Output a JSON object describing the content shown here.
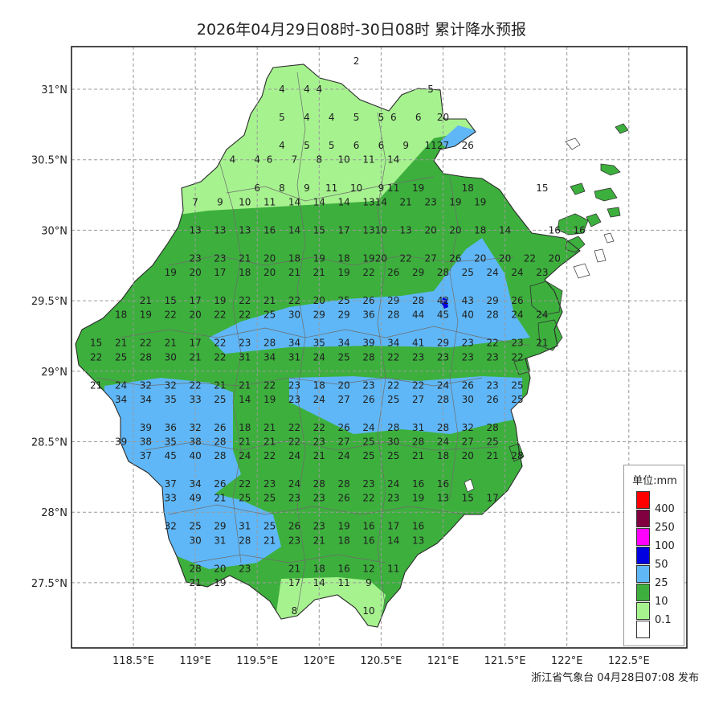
{
  "title": "2026年04月29日08时-30日08时 累计降水预报",
  "footer": "浙江省气象台 04月28日07:08 发布",
  "x_ticks": [
    "118.5°E",
    "119°E",
    "119.5°E",
    "120°E",
    "120.5°E",
    "121°E",
    "121.5°E",
    "122°E",
    "122.5°E"
  ],
  "y_ticks": [
    "31°N",
    "30.5°N",
    "30°N",
    "29.5°N",
    "29°N",
    "28.5°N",
    "28°N",
    "27.5°N"
  ],
  "legend": {
    "title": "单位:mm",
    "items": [
      {
        "label": "400",
        "color": "#ff0000"
      },
      {
        "label": "250",
        "color": "#800040"
      },
      {
        "label": "100",
        "color": "#ff00ff"
      },
      {
        "label": "50",
        "color": "#0000e0"
      },
      {
        "label": "25",
        "color": "#5fb7f7"
      },
      {
        "label": "10",
        "color": "#3daf3d"
      },
      {
        "label": "0.1",
        "color": "#a6f28f"
      },
      {
        "label": "",
        "color": "#ffffff"
      }
    ]
  },
  "colors": {
    "light": "#a6f28f",
    "mid": "#3daf3d",
    "blue": "#5fb7f7",
    "deep": "#0000e0"
  },
  "stations": [
    [
      120.3,
      31.2,
      "2"
    ],
    [
      119.7,
      31.0,
      "4"
    ],
    [
      119.9,
      31.0,
      "4"
    ],
    [
      120.0,
      31.0,
      "4"
    ],
    [
      120.9,
      31.0,
      "5"
    ],
    [
      119.7,
      30.8,
      "5"
    ],
    [
      119.9,
      30.8,
      "4"
    ],
    [
      120.1,
      30.8,
      "4"
    ],
    [
      120.3,
      30.8,
      "5"
    ],
    [
      120.5,
      30.8,
      "5"
    ],
    [
      120.6,
      30.8,
      "6"
    ],
    [
      120.8,
      30.8,
      "6"
    ],
    [
      121.0,
      30.8,
      "20"
    ],
    [
      119.7,
      30.6,
      "4"
    ],
    [
      119.9,
      30.6,
      "5"
    ],
    [
      120.1,
      30.6,
      "5"
    ],
    [
      120.3,
      30.6,
      "6"
    ],
    [
      120.5,
      30.6,
      "6"
    ],
    [
      120.7,
      30.6,
      "9"
    ],
    [
      120.9,
      30.6,
      "11"
    ],
    [
      121.0,
      30.6,
      "27"
    ],
    [
      121.2,
      30.6,
      "26"
    ],
    [
      119.3,
      30.5,
      "4"
    ],
    [
      119.5,
      30.5,
      "4"
    ],
    [
      119.6,
      30.5,
      "6"
    ],
    [
      119.8,
      30.5,
      "7"
    ],
    [
      120.0,
      30.5,
      "8"
    ],
    [
      120.2,
      30.5,
      "10"
    ],
    [
      120.4,
      30.5,
      "11"
    ],
    [
      120.6,
      30.5,
      "14"
    ],
    [
      119.5,
      30.3,
      "6"
    ],
    [
      119.7,
      30.3,
      "8"
    ],
    [
      119.9,
      30.3,
      "9"
    ],
    [
      120.1,
      30.3,
      "11"
    ],
    [
      120.3,
      30.3,
      "10"
    ],
    [
      120.5,
      30.3,
      "9"
    ],
    [
      120.6,
      30.3,
      "11"
    ],
    [
      120.8,
      30.3,
      "19"
    ],
    [
      121.2,
      30.3,
      "18"
    ],
    [
      121.8,
      30.3,
      "15"
    ],
    [
      119.0,
      30.2,
      "7"
    ],
    [
      119.2,
      30.2,
      "9"
    ],
    [
      119.4,
      30.2,
      "10"
    ],
    [
      119.6,
      30.2,
      "11"
    ],
    [
      119.8,
      30.2,
      "14"
    ],
    [
      120.0,
      30.2,
      "14"
    ],
    [
      120.2,
      30.2,
      "14"
    ],
    [
      120.4,
      30.2,
      "13"
    ],
    [
      120.5,
      30.2,
      "14"
    ],
    [
      120.7,
      30.2,
      "21"
    ],
    [
      120.9,
      30.2,
      "23"
    ],
    [
      121.1,
      30.2,
      "19"
    ],
    [
      121.3,
      30.2,
      "19"
    ],
    [
      119.0,
      30.0,
      "13"
    ],
    [
      119.2,
      30.0,
      "13"
    ],
    [
      119.4,
      30.0,
      "13"
    ],
    [
      119.6,
      30.0,
      "16"
    ],
    [
      119.8,
      30.0,
      "14"
    ],
    [
      120.0,
      30.0,
      "15"
    ],
    [
      120.2,
      30.0,
      "17"
    ],
    [
      120.4,
      30.0,
      "13"
    ],
    [
      120.5,
      30.0,
      "10"
    ],
    [
      120.7,
      30.0,
      "13"
    ],
    [
      120.9,
      30.0,
      "20"
    ],
    [
      121.1,
      30.0,
      "20"
    ],
    [
      121.3,
      30.0,
      "18"
    ],
    [
      121.5,
      30.0,
      "14"
    ],
    [
      121.9,
      30.0,
      "16"
    ],
    [
      122.1,
      30.0,
      "16"
    ],
    [
      119.0,
      29.8,
      "23"
    ],
    [
      119.2,
      29.8,
      "23"
    ],
    [
      119.4,
      29.8,
      "21"
    ],
    [
      119.6,
      29.8,
      "20"
    ],
    [
      119.8,
      29.8,
      "18"
    ],
    [
      120.0,
      29.8,
      "19"
    ],
    [
      120.2,
      29.8,
      "18"
    ],
    [
      120.4,
      29.8,
      "19"
    ],
    [
      120.5,
      29.8,
      "20"
    ],
    [
      120.7,
      29.8,
      "22"
    ],
    [
      120.9,
      29.8,
      "27"
    ],
    [
      121.1,
      29.8,
      "26"
    ],
    [
      121.3,
      29.8,
      "20"
    ],
    [
      121.5,
      29.8,
      "20"
    ],
    [
      121.7,
      29.8,
      "22"
    ],
    [
      121.9,
      29.8,
      "20"
    ],
    [
      118.8,
      29.7,
      "19"
    ],
    [
      119.0,
      29.7,
      "20"
    ],
    [
      119.2,
      29.7,
      "17"
    ],
    [
      119.4,
      29.7,
      "18"
    ],
    [
      119.6,
      29.7,
      "20"
    ],
    [
      119.8,
      29.7,
      "21"
    ],
    [
      120.0,
      29.7,
      "21"
    ],
    [
      120.2,
      29.7,
      "19"
    ],
    [
      120.4,
      29.7,
      "22"
    ],
    [
      120.6,
      29.7,
      "26"
    ],
    [
      120.8,
      29.7,
      "29"
    ],
    [
      121.0,
      29.7,
      "28"
    ],
    [
      121.2,
      29.7,
      "25"
    ],
    [
      121.4,
      29.7,
      "24"
    ],
    [
      121.6,
      29.7,
      "24"
    ],
    [
      121.8,
      29.7,
      "23"
    ],
    [
      118.6,
      29.5,
      "21"
    ],
    [
      118.8,
      29.5,
      "15"
    ],
    [
      119.0,
      29.5,
      "17"
    ],
    [
      119.2,
      29.5,
      "19"
    ],
    [
      119.4,
      29.5,
      "22"
    ],
    [
      119.6,
      29.5,
      "21"
    ],
    [
      119.8,
      29.5,
      "22"
    ],
    [
      120.0,
      29.5,
      "20"
    ],
    [
      120.2,
      29.5,
      "25"
    ],
    [
      120.4,
      29.5,
      "26"
    ],
    [
      120.6,
      29.5,
      "29"
    ],
    [
      120.8,
      29.5,
      "28"
    ],
    [
      121.0,
      29.5,
      "42"
    ],
    [
      121.2,
      29.5,
      "43"
    ],
    [
      121.4,
      29.5,
      "29"
    ],
    [
      121.6,
      29.5,
      "26"
    ],
    [
      118.4,
      29.4,
      "18"
    ],
    [
      118.6,
      29.4,
      "19"
    ],
    [
      118.8,
      29.4,
      "22"
    ],
    [
      119.0,
      29.4,
      "20"
    ],
    [
      119.2,
      29.4,
      "22"
    ],
    [
      119.4,
      29.4,
      "22"
    ],
    [
      119.6,
      29.4,
      "25"
    ],
    [
      119.8,
      29.4,
      "30"
    ],
    [
      120.0,
      29.4,
      "29"
    ],
    [
      120.2,
      29.4,
      "29"
    ],
    [
      120.4,
      29.4,
      "36"
    ],
    [
      120.6,
      29.4,
      "28"
    ],
    [
      120.8,
      29.4,
      "44"
    ],
    [
      121.0,
      29.4,
      "45"
    ],
    [
      121.2,
      29.4,
      "40"
    ],
    [
      121.4,
      29.4,
      "28"
    ],
    [
      121.6,
      29.4,
      "24"
    ],
    [
      121.8,
      29.4,
      "24"
    ],
    [
      118.2,
      29.2,
      "15"
    ],
    [
      118.4,
      29.2,
      "21"
    ],
    [
      118.6,
      29.2,
      "22"
    ],
    [
      118.8,
      29.2,
      "21"
    ],
    [
      119.0,
      29.2,
      "17"
    ],
    [
      119.2,
      29.2,
      "22"
    ],
    [
      119.4,
      29.2,
      "23"
    ],
    [
      119.6,
      29.2,
      "28"
    ],
    [
      119.8,
      29.2,
      "34"
    ],
    [
      120.0,
      29.2,
      "35"
    ],
    [
      120.2,
      29.2,
      "34"
    ],
    [
      120.4,
      29.2,
      "39"
    ],
    [
      120.6,
      29.2,
      "34"
    ],
    [
      120.8,
      29.2,
      "41"
    ],
    [
      121.0,
      29.2,
      "29"
    ],
    [
      121.2,
      29.2,
      "23"
    ],
    [
      121.4,
      29.2,
      "22"
    ],
    [
      121.6,
      29.2,
      "23"
    ],
    [
      121.8,
      29.2,
      "21"
    ],
    [
      118.2,
      29.1,
      "22"
    ],
    [
      118.4,
      29.1,
      "25"
    ],
    [
      118.6,
      29.1,
      "28"
    ],
    [
      118.8,
      29.1,
      "30"
    ],
    [
      119.0,
      29.1,
      "21"
    ],
    [
      119.2,
      29.1,
      "22"
    ],
    [
      119.4,
      29.1,
      "31"
    ],
    [
      119.6,
      29.1,
      "34"
    ],
    [
      119.8,
      29.1,
      "31"
    ],
    [
      120.0,
      29.1,
      "24"
    ],
    [
      120.2,
      29.1,
      "25"
    ],
    [
      120.4,
      29.1,
      "28"
    ],
    [
      120.6,
      29.1,
      "22"
    ],
    [
      120.8,
      29.1,
      "23"
    ],
    [
      121.0,
      29.1,
      "23"
    ],
    [
      121.2,
      29.1,
      "23"
    ],
    [
      121.4,
      29.1,
      "23"
    ],
    [
      121.6,
      29.1,
      "22"
    ],
    [
      118.2,
      28.9,
      "21"
    ],
    [
      118.4,
      28.9,
      "24"
    ],
    [
      118.6,
      28.9,
      "32"
    ],
    [
      118.8,
      28.9,
      "32"
    ],
    [
      119.0,
      28.9,
      "22"
    ],
    [
      119.2,
      28.9,
      "21"
    ],
    [
      119.4,
      28.9,
      "21"
    ],
    [
      119.6,
      28.9,
      "22"
    ],
    [
      119.8,
      28.9,
      "23"
    ],
    [
      120.0,
      28.9,
      "18"
    ],
    [
      120.2,
      28.9,
      "20"
    ],
    [
      120.4,
      28.9,
      "23"
    ],
    [
      120.6,
      28.9,
      "22"
    ],
    [
      120.8,
      28.9,
      "22"
    ],
    [
      121.0,
      28.9,
      "24"
    ],
    [
      121.2,
      28.9,
      "26"
    ],
    [
      121.4,
      28.9,
      "23"
    ],
    [
      121.6,
      28.9,
      "25"
    ],
    [
      118.4,
      28.8,
      "34"
    ],
    [
      118.6,
      28.8,
      "34"
    ],
    [
      118.8,
      28.8,
      "35"
    ],
    [
      119.0,
      28.8,
      "33"
    ],
    [
      119.2,
      28.8,
      "25"
    ],
    [
      119.4,
      28.8,
      "14"
    ],
    [
      119.6,
      28.8,
      "19"
    ],
    [
      119.8,
      28.8,
      "23"
    ],
    [
      120.0,
      28.8,
      "24"
    ],
    [
      120.2,
      28.8,
      "27"
    ],
    [
      120.4,
      28.8,
      "26"
    ],
    [
      120.6,
      28.8,
      "25"
    ],
    [
      120.8,
      28.8,
      "27"
    ],
    [
      121.0,
      28.8,
      "28"
    ],
    [
      121.2,
      28.8,
      "30"
    ],
    [
      121.4,
      28.8,
      "26"
    ],
    [
      121.6,
      28.8,
      "25"
    ],
    [
      118.6,
      28.6,
      "39"
    ],
    [
      118.8,
      28.6,
      "36"
    ],
    [
      119.0,
      28.6,
      "32"
    ],
    [
      119.2,
      28.6,
      "26"
    ],
    [
      119.4,
      28.6,
      "18"
    ],
    [
      119.6,
      28.6,
      "21"
    ],
    [
      119.8,
      28.6,
      "22"
    ],
    [
      120.0,
      28.6,
      "22"
    ],
    [
      120.2,
      28.6,
      "26"
    ],
    [
      120.4,
      28.6,
      "24"
    ],
    [
      120.6,
      28.6,
      "28"
    ],
    [
      120.8,
      28.6,
      "31"
    ],
    [
      121.0,
      28.6,
      "28"
    ],
    [
      121.2,
      28.6,
      "32"
    ],
    [
      121.4,
      28.6,
      "28"
    ],
    [
      118.4,
      28.5,
      "39"
    ],
    [
      118.6,
      28.5,
      "38"
    ],
    [
      118.8,
      28.5,
      "35"
    ],
    [
      119.0,
      28.5,
      "38"
    ],
    [
      119.2,
      28.5,
      "28"
    ],
    [
      119.4,
      28.5,
      "21"
    ],
    [
      119.6,
      28.5,
      "21"
    ],
    [
      119.8,
      28.5,
      "22"
    ],
    [
      120.0,
      28.5,
      "23"
    ],
    [
      120.2,
      28.5,
      "27"
    ],
    [
      120.4,
      28.5,
      "25"
    ],
    [
      120.6,
      28.5,
      "30"
    ],
    [
      120.8,
      28.5,
      "28"
    ],
    [
      121.0,
      28.5,
      "24"
    ],
    [
      121.2,
      28.5,
      "27"
    ],
    [
      121.4,
      28.5,
      "25"
    ],
    [
      118.6,
      28.4,
      "37"
    ],
    [
      118.8,
      28.4,
      "45"
    ],
    [
      119.0,
      28.4,
      "40"
    ],
    [
      119.2,
      28.4,
      "28"
    ],
    [
      119.4,
      28.4,
      "24"
    ],
    [
      119.6,
      28.4,
      "22"
    ],
    [
      119.8,
      28.4,
      "24"
    ],
    [
      120.0,
      28.4,
      "21"
    ],
    [
      120.2,
      28.4,
      "24"
    ],
    [
      120.4,
      28.4,
      "25"
    ],
    [
      120.6,
      28.4,
      "25"
    ],
    [
      120.8,
      28.4,
      "21"
    ],
    [
      121.0,
      28.4,
      "18"
    ],
    [
      121.2,
      28.4,
      "20"
    ],
    [
      121.4,
      28.4,
      "21"
    ],
    [
      121.6,
      28.4,
      "28"
    ],
    [
      118.8,
      28.2,
      "37"
    ],
    [
      119.0,
      28.2,
      "34"
    ],
    [
      119.2,
      28.2,
      "26"
    ],
    [
      119.4,
      28.2,
      "22"
    ],
    [
      119.6,
      28.2,
      "23"
    ],
    [
      119.8,
      28.2,
      "24"
    ],
    [
      120.0,
      28.2,
      "28"
    ],
    [
      120.2,
      28.2,
      "28"
    ],
    [
      120.4,
      28.2,
      "23"
    ],
    [
      120.6,
      28.2,
      "24"
    ],
    [
      120.8,
      28.2,
      "16"
    ],
    [
      121.0,
      28.2,
      "16"
    ],
    [
      118.8,
      28.1,
      "33"
    ],
    [
      119.0,
      28.1,
      "49"
    ],
    [
      119.2,
      28.1,
      "21"
    ],
    [
      119.4,
      28.1,
      "25"
    ],
    [
      119.6,
      28.1,
      "25"
    ],
    [
      119.8,
      28.1,
      "23"
    ],
    [
      120.0,
      28.1,
      "23"
    ],
    [
      120.2,
      28.1,
      "26"
    ],
    [
      120.4,
      28.1,
      "22"
    ],
    [
      120.6,
      28.1,
      "23"
    ],
    [
      120.8,
      28.1,
      "19"
    ],
    [
      121.0,
      28.1,
      "13"
    ],
    [
      121.2,
      28.1,
      "15"
    ],
    [
      121.4,
      28.1,
      "17"
    ],
    [
      118.8,
      27.9,
      "32"
    ],
    [
      119.0,
      27.9,
      "25"
    ],
    [
      119.2,
      27.9,
      "29"
    ],
    [
      119.4,
      27.9,
      "31"
    ],
    [
      119.6,
      27.9,
      "25"
    ],
    [
      119.8,
      27.9,
      "26"
    ],
    [
      120.0,
      27.9,
      "23"
    ],
    [
      120.2,
      27.9,
      "19"
    ],
    [
      120.4,
      27.9,
      "16"
    ],
    [
      120.6,
      27.9,
      "17"
    ],
    [
      120.8,
      27.9,
      "16"
    ],
    [
      119.0,
      27.8,
      "30"
    ],
    [
      119.2,
      27.8,
      "31"
    ],
    [
      119.4,
      27.8,
      "28"
    ],
    [
      119.6,
      27.8,
      "21"
    ],
    [
      119.8,
      27.8,
      "23"
    ],
    [
      120.0,
      27.8,
      "21"
    ],
    [
      120.2,
      27.8,
      "18"
    ],
    [
      120.4,
      27.8,
      "16"
    ],
    [
      120.6,
      27.8,
      "14"
    ],
    [
      120.8,
      27.8,
      "13"
    ],
    [
      119.0,
      27.6,
      "28"
    ],
    [
      119.2,
      27.6,
      "20"
    ],
    [
      119.4,
      27.6,
      "23"
    ],
    [
      119.8,
      27.6,
      "21"
    ],
    [
      120.0,
      27.6,
      "18"
    ],
    [
      120.2,
      27.6,
      "16"
    ],
    [
      120.4,
      27.6,
      "12"
    ],
    [
      120.6,
      27.6,
      "11"
    ],
    [
      119.0,
      27.5,
      "21"
    ],
    [
      119.2,
      27.5,
      "19"
    ],
    [
      119.8,
      27.5,
      "17"
    ],
    [
      120.0,
      27.5,
      "14"
    ],
    [
      120.2,
      27.5,
      "11"
    ],
    [
      120.4,
      27.5,
      "9"
    ],
    [
      119.8,
      27.3,
      "8"
    ],
    [
      120.4,
      27.3,
      "10"
    ]
  ]
}
